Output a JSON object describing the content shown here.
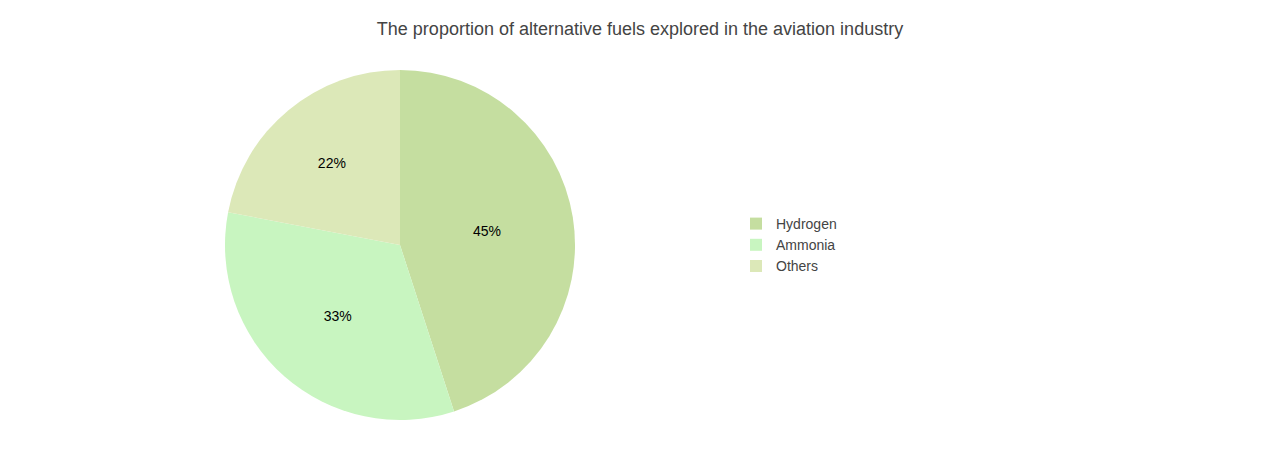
{
  "chart_data": {
    "type": "pie",
    "title": "The proportion of alternative fuels explored in the aviation industry",
    "categories": [
      "Hydrogen",
      "Ammonia",
      "Others"
    ],
    "values": [
      45,
      33,
      22
    ],
    "value_labels": [
      "45%",
      "33%",
      "22%"
    ],
    "colors": [
      "#c5dea0",
      "#c8f5c0",
      "#dce8b8"
    ],
    "data_labels": true,
    "legend": "right"
  }
}
